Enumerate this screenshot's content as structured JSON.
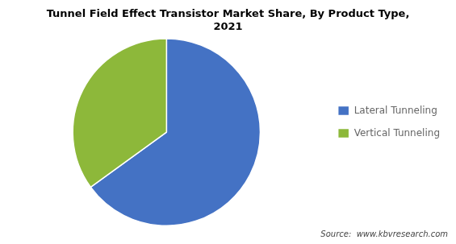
{
  "chart_data": {
    "type": "pie",
    "title": [
      "Tunnel Field Effect Transistor Market Share, By Product Type,",
      "2021"
    ],
    "categories": [
      "Lateral Tunneling",
      "Vertical Tunneling"
    ],
    "values": [
      65,
      35
    ],
    "colors": [
      "#4472C4",
      "#8DB83A"
    ],
    "legend": "right",
    "annotations": [
      "Source:  www.kbvresearch.com"
    ]
  }
}
